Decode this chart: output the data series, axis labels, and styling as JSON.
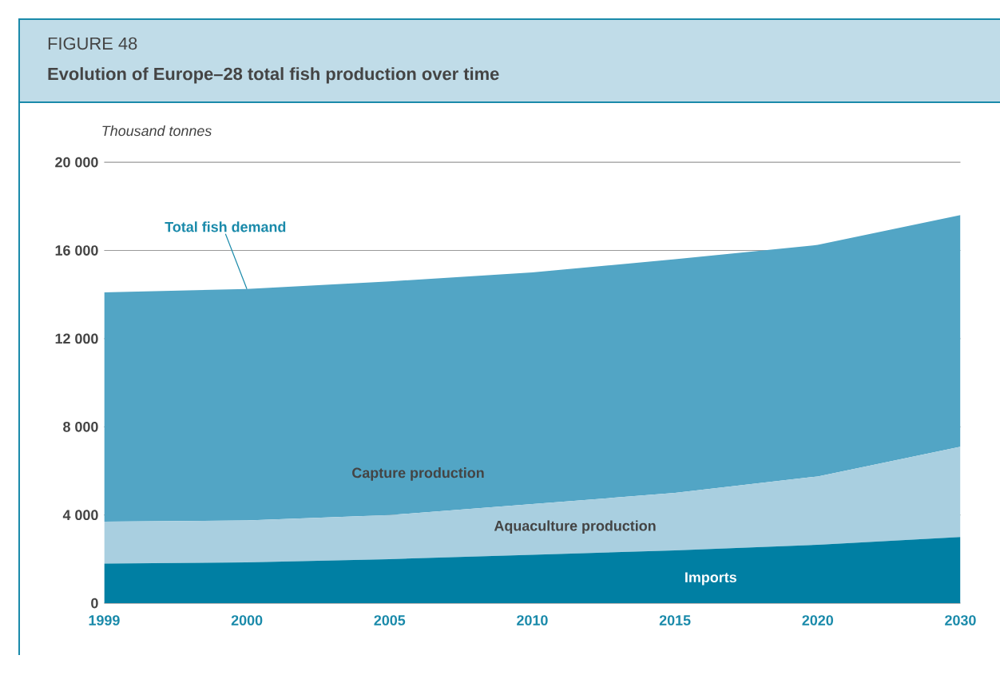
{
  "chart_data": {
    "type": "area",
    "title": "FIGURE 48",
    "subtitle": "Evolution of Europe–28 total fish production over time",
    "ylabel": "Thousand tonnes",
    "categories": [
      "1999",
      "2000",
      "2005",
      "2010",
      "2015",
      "2020",
      "2030"
    ],
    "stacked": true,
    "series": [
      {
        "name": "Imports",
        "color": "#007fa3",
        "values": [
          1800,
          1850,
          2000,
          2200,
          2400,
          2650,
          3000
        ]
      },
      {
        "name": "Aquaculture production",
        "color": "#a9cfe0",
        "values": [
          1900,
          1900,
          2000,
          2300,
          2600,
          3100,
          4100
        ]
      },
      {
        "name": "Capture production",
        "color": "#52a5c5",
        "values": [
          10400,
          10500,
          10600,
          10500,
          10600,
          10500,
          10500
        ]
      }
    ],
    "ylim": [
      0,
      20000
    ],
    "yticks": [
      {
        "value": 0,
        "label": "0"
      },
      {
        "value": 4000,
        "label": "4 000"
      },
      {
        "value": 8000,
        "label": "8 000"
      },
      {
        "value": 12000,
        "label": "12 000"
      },
      {
        "value": 16000,
        "label": "16 000"
      },
      {
        "value": 20000,
        "label": "20 000"
      }
    ],
    "grid": "y",
    "annotations": [
      {
        "text": "Total fish demand",
        "x": "2000",
        "y": 14250
      }
    ]
  }
}
